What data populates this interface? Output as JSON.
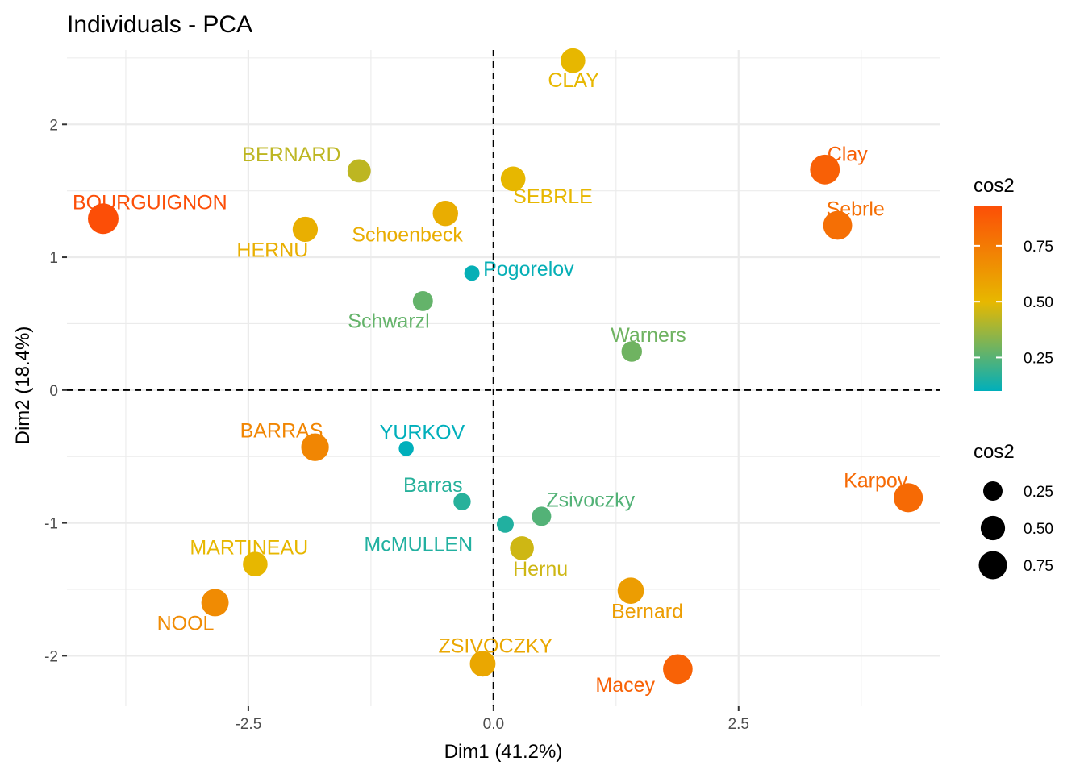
{
  "chart_data": {
    "type": "scatter",
    "title": "Individuals - PCA",
    "xlabel": "Dim1 (41.2%)",
    "ylabel": "Dim2 (18.4%)",
    "xlim": [
      -4.35,
      4.55
    ],
    "ylim": [
      -2.38,
      2.56
    ],
    "x_ticks": [
      -2.5,
      0.0,
      2.5
    ],
    "x_tick_labels": [
      "-2.5",
      "0.0",
      "2.5"
    ],
    "y_ticks": [
      -2,
      -1,
      0,
      1,
      2
    ],
    "y_tick_labels": [
      "-2",
      "-1",
      "0",
      "1",
      "2"
    ],
    "grid": true,
    "reference_lines": {
      "x": 0,
      "y": 0,
      "style": "dashed"
    },
    "color_legend": {
      "title": "cos2",
      "range": [
        0.1,
        0.93
      ],
      "ticks": [
        0.25,
        0.5,
        0.75
      ],
      "tick_labels": [
        "0.25",
        "0.50",
        "0.75"
      ],
      "colors": [
        "#00AFBB",
        "#E7B800",
        "#FC4E07"
      ],
      "placement": "right"
    },
    "size_legend": {
      "title": "cos2",
      "values": [
        0.25,
        0.5,
        0.75
      ],
      "labels": [
        "0.25",
        "0.50",
        "0.75"
      ],
      "placement": "right"
    },
    "points": [
      {
        "label": "SEBRLE",
        "x": 0.2,
        "y": 1.59,
        "cos2": 0.52
      },
      {
        "label": "CLAY",
        "x": 0.81,
        "y": 2.48,
        "cos2": 0.52
      },
      {
        "label": "BERNARD",
        "x": -1.37,
        "y": 1.65,
        "cos2": 0.44
      },
      {
        "label": "YURKOV",
        "x": -0.89,
        "y": -0.44,
        "cos2": 0.1
      },
      {
        "label": "ZSIVOCZKY",
        "x": -0.11,
        "y": -2.06,
        "cos2": 0.58
      },
      {
        "label": "McMULLEN",
        "x": 0.12,
        "y": -1.01,
        "cos2": 0.16
      },
      {
        "label": "MARTINEAU",
        "x": -2.43,
        "y": -1.31,
        "cos2": 0.52
      },
      {
        "label": "HERNU",
        "x": -1.92,
        "y": 1.21,
        "cos2": 0.55
      },
      {
        "label": "BARRAS",
        "x": -1.82,
        "y": -0.43,
        "cos2": 0.71
      },
      {
        "label": "NOOL",
        "x": -2.84,
        "y": -1.6,
        "cos2": 0.69
      },
      {
        "label": "BOURGUIGNON",
        "x": -3.98,
        "y": 1.29,
        "cos2": 0.93
      },
      {
        "label": "Sebrle",
        "x": 3.51,
        "y": 1.24,
        "cos2": 0.8
      },
      {
        "label": "Clay",
        "x": 3.38,
        "y": 1.66,
        "cos2": 0.86
      },
      {
        "label": "Karpov",
        "x": 4.23,
        "y": -0.81,
        "cos2": 0.82
      },
      {
        "label": "Macey",
        "x": 1.88,
        "y": -2.1,
        "cos2": 0.85
      },
      {
        "label": "Warners",
        "x": 1.41,
        "y": 0.29,
        "cos2": 0.3
      },
      {
        "label": "Zsivoczky",
        "x": 0.49,
        "y": -0.95,
        "cos2": 0.25
      },
      {
        "label": "Hernu",
        "x": 0.29,
        "y": -1.19,
        "cos2": 0.47
      },
      {
        "label": "Bernard",
        "x": 1.4,
        "y": -1.51,
        "cos2": 0.62
      },
      {
        "label": "Schwarzl",
        "x": -0.72,
        "y": 0.67,
        "cos2": 0.28
      },
      {
        "label": "Pogorelov",
        "x": -0.22,
        "y": 0.88,
        "cos2": 0.11
      },
      {
        "label": "Schoenbeck",
        "x": -0.49,
        "y": 1.33,
        "cos2": 0.56
      },
      {
        "label": "Barras",
        "x": -0.32,
        "y": -0.84,
        "cos2": 0.17
      }
    ]
  }
}
